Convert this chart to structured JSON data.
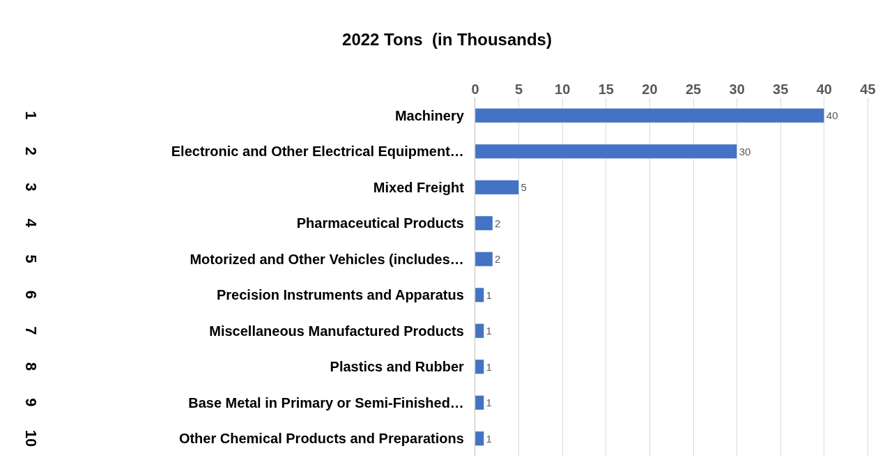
{
  "chart_data": {
    "type": "bar",
    "orientation": "horizontal",
    "title": "2022 Tons  (in Thousands)",
    "categories": [
      "Machinery",
      "Electronic and Other Electrical Equipment…",
      "Mixed Freight",
      "Pharmaceutical Products",
      "Motorized and Other Vehicles (includes…",
      "Precision Instruments and Apparatus",
      "Miscellaneous Manufactured Products",
      "Plastics and Rubber",
      "Base Metal in Primary or Semi-Finished…",
      "Other Chemical Products and Preparations"
    ],
    "y2_categories": [
      "1",
      "2",
      "3",
      "4",
      "5",
      "6",
      "7",
      "8",
      "9",
      "10"
    ],
    "values": [
      40,
      30,
      5,
      2,
      2,
      1,
      1,
      1,
      1,
      1
    ],
    "color": "#4472c4",
    "data_labels": true,
    "xlim": [
      0,
      48
    ],
    "xticks": [
      0,
      5,
      10,
      15,
      20,
      25,
      30,
      35,
      40,
      45
    ],
    "grid": "x",
    "legend": false
  }
}
